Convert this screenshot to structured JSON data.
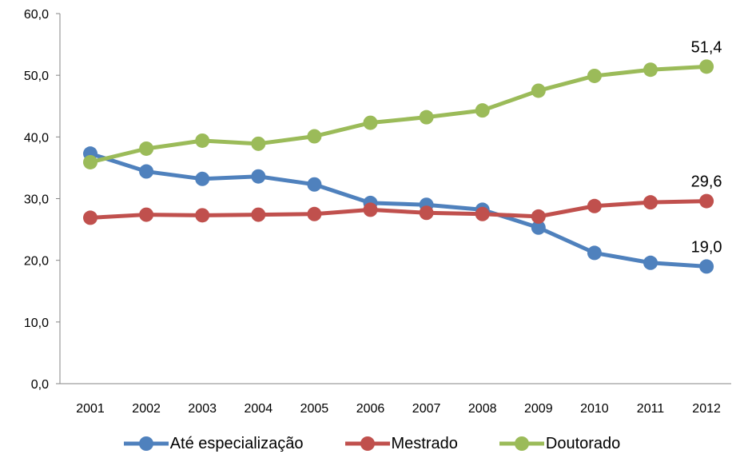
{
  "chart_data": {
    "type": "line",
    "categories": [
      "2001",
      "2002",
      "2003",
      "2004",
      "2005",
      "2006",
      "2007",
      "2008",
      "2009",
      "2010",
      "2011",
      "2012"
    ],
    "series": [
      {
        "name": "Até especialização",
        "color": "#4F81BD",
        "values": [
          37.3,
          34.4,
          33.2,
          33.6,
          32.3,
          29.3,
          29.0,
          28.2,
          25.3,
          21.2,
          19.6,
          19.0
        ]
      },
      {
        "name": "Mestrado",
        "color": "#C0504D",
        "values": [
          26.9,
          27.4,
          27.3,
          27.4,
          27.5,
          28.2,
          27.7,
          27.5,
          27.1,
          28.8,
          29.4,
          29.6
        ]
      },
      {
        "name": "Doutorado",
        "color": "#9BBB59",
        "values": [
          35.9,
          38.1,
          39.4,
          38.9,
          40.1,
          42.3,
          43.2,
          44.3,
          47.5,
          49.9,
          50.9,
          51.4
        ]
      }
    ],
    "data_labels": [
      "51,4",
      "29,6",
      "19,0"
    ],
    "y_ticks": [
      "0,0",
      "10,0",
      "20,0",
      "30,0",
      "40,0",
      "50,0",
      "60,0"
    ],
    "ylim": [
      0,
      60
    ],
    "xlabel": "",
    "ylabel": "",
    "title": "",
    "grid": false,
    "legend_position": "bottom"
  }
}
